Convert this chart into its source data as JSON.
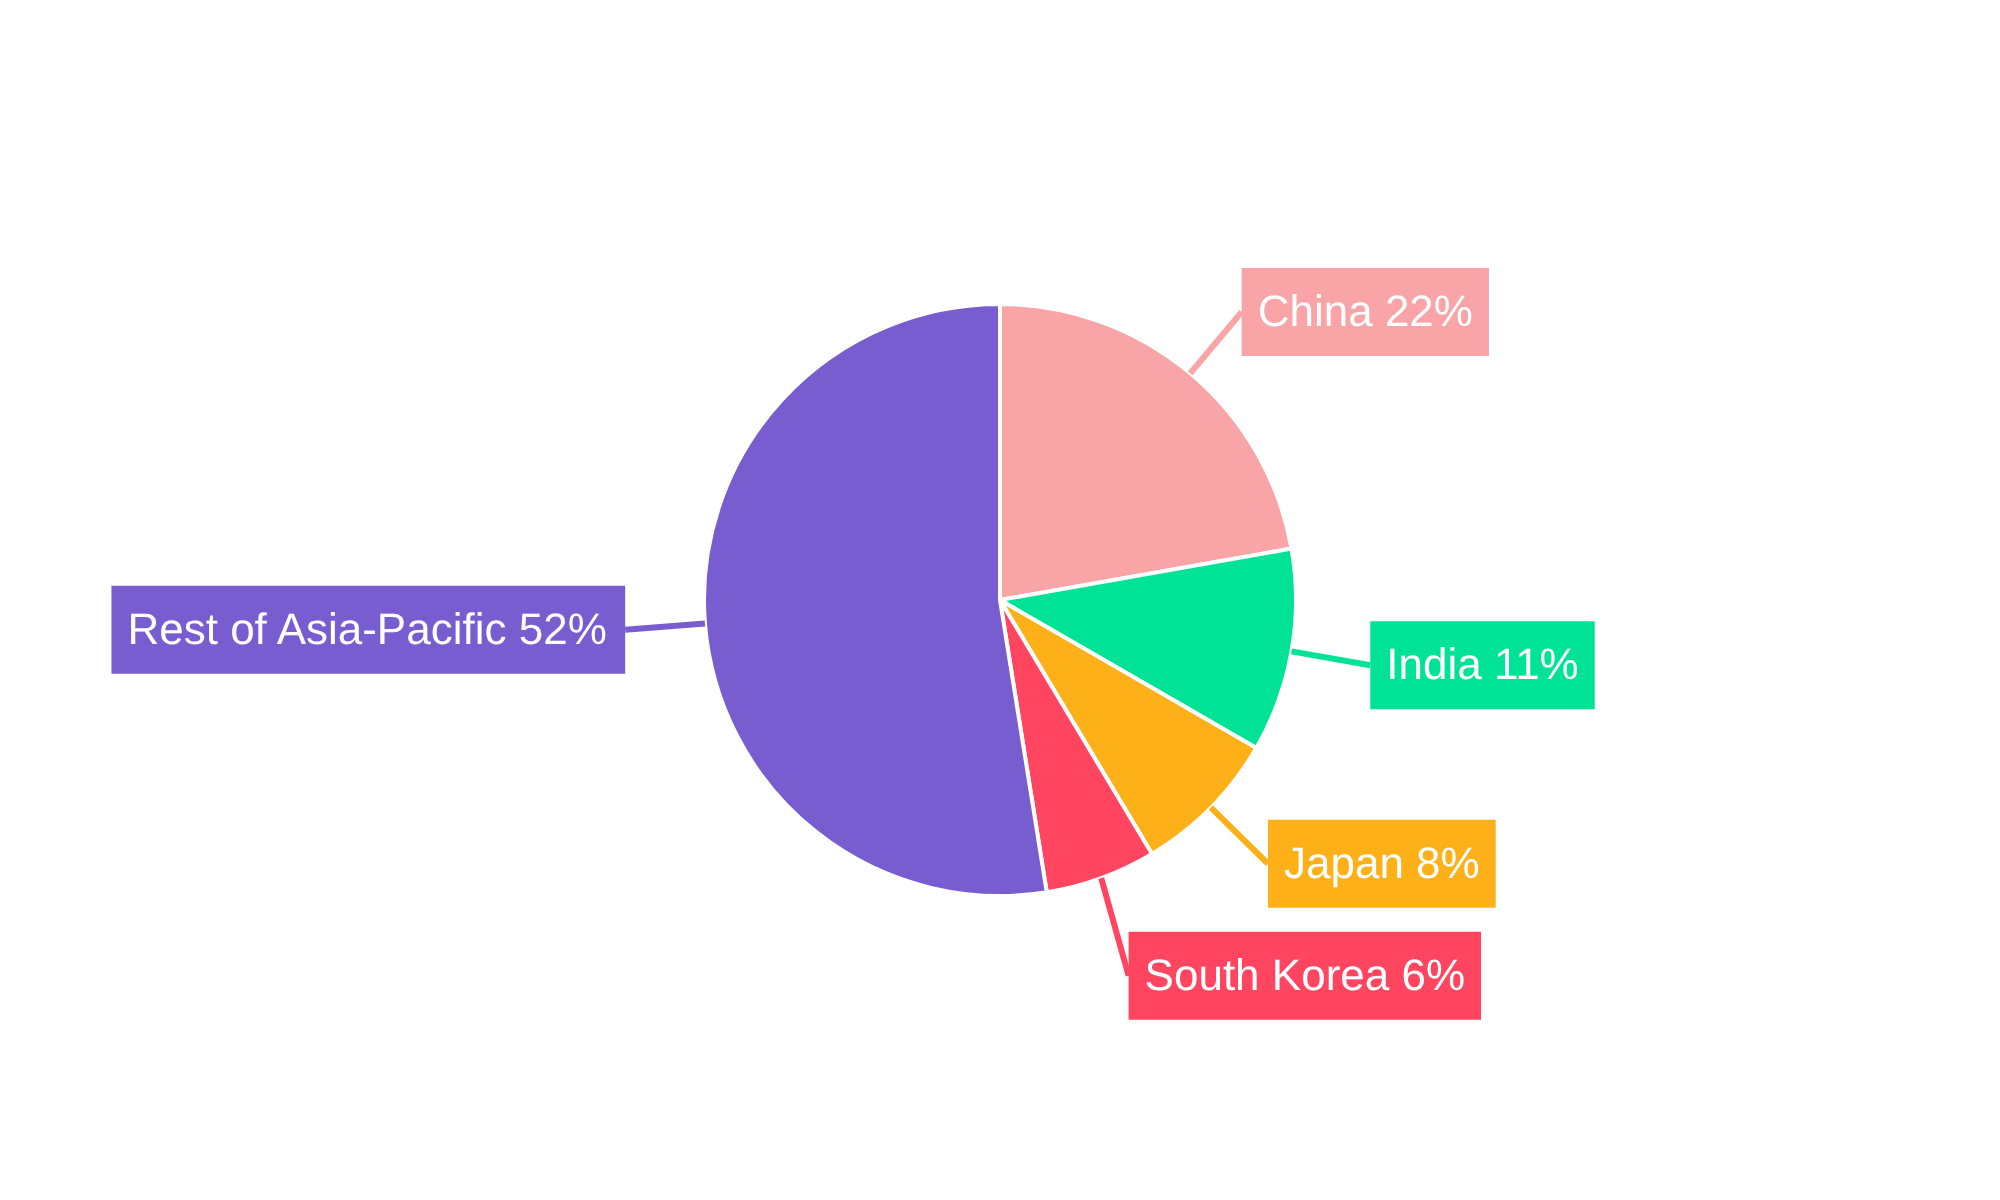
{
  "chart_data": {
    "type": "pie",
    "categories": [
      "China",
      "India",
      "Japan",
      "South Korea",
      "Rest of Asia-Pacific"
    ],
    "values": [
      22,
      11,
      8,
      6,
      52
    ],
    "value_labels": [
      "22%",
      "11%",
      "8%",
      "6%",
      "52%"
    ],
    "colors": [
      "#f9a4a6",
      "#00e396",
      "#feb019",
      "#ff4560",
      "#775dd0"
    ]
  }
}
